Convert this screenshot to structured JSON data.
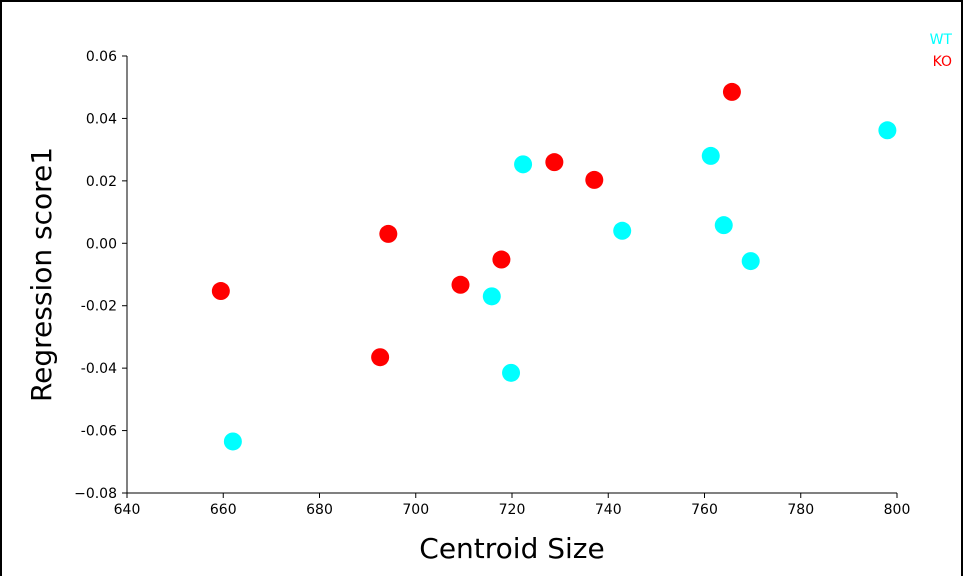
{
  "chart_data": {
    "type": "scatter",
    "xlabel": "Centroid Size",
    "ylabel": "Regression score1",
    "xlim": [
      640,
      800
    ],
    "ylim": [
      -0.08,
      0.06
    ],
    "xticks": [
      640,
      660,
      680,
      700,
      720,
      740,
      760,
      780,
      800
    ],
    "yticks": [
      -0.08,
      -0.06,
      -0.04,
      -0.02,
      0.0,
      0.02,
      0.04,
      0.06
    ],
    "xtick_labels": [
      "640",
      "660",
      "680",
      "700",
      "720",
      "740",
      "760",
      "780",
      "800"
    ],
    "ytick_labels": [
      "−0.08",
      "-0.06",
      "-0.04",
      "-0.02",
      "0.00",
      "0.02",
      "0.04",
      "0.06"
    ],
    "grid": false,
    "legend_position": "top-right",
    "series": [
      {
        "name": "WT",
        "color": "#00ffff",
        "points": [
          [
            662.0,
            -0.0635
          ],
          [
            715.8,
            -0.017
          ],
          [
            719.8,
            -0.0415
          ],
          [
            722.3,
            0.0253
          ],
          [
            742.9,
            0.004
          ],
          [
            761.3,
            0.028
          ],
          [
            764.0,
            0.0058
          ],
          [
            769.6,
            -0.0057
          ],
          [
            798.0,
            0.0362
          ]
        ]
      },
      {
        "name": "KO",
        "color": "#ff0000",
        "points": [
          [
            659.5,
            -0.0153
          ],
          [
            692.6,
            -0.0365
          ],
          [
            694.3,
            0.003
          ],
          [
            709.3,
            -0.0133
          ],
          [
            717.8,
            -0.0052
          ],
          [
            728.8,
            0.026
          ],
          [
            737.1,
            0.0203
          ],
          [
            765.7,
            0.0485
          ]
        ]
      }
    ]
  }
}
